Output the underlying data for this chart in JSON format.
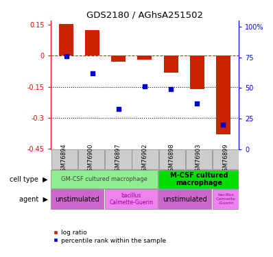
{
  "title": "GDS2180 / AGhsA251502",
  "samples": [
    "GSM76894",
    "GSM76900",
    "GSM76897",
    "GSM76902",
    "GSM76898",
    "GSM76903",
    "GSM76899"
  ],
  "log_ratios": [
    0.155,
    0.125,
    -0.03,
    -0.02,
    -0.08,
    -0.16,
    -0.38
  ],
  "percentile_ranks": [
    76,
    62,
    33,
    51,
    49,
    37,
    20
  ],
  "ylim_left": [
    -0.45,
    0.17
  ],
  "ylim_right": [
    0,
    105
  ],
  "yticks_left": [
    0.15,
    0,
    -0.15,
    -0.3,
    -0.45
  ],
  "yticks_right": [
    100,
    75,
    50,
    25,
    0
  ],
  "cell_type_gm": "GM-CSF cultured macrophage",
  "cell_type_mcsf": "M-CSF cultured\nmacrophage",
  "cell_type_gm_color": "#90EE90",
  "cell_type_mcsf_color": "#00DD00",
  "agent_unstim_color": "#CC66CC",
  "agent_bcg_color": "#EE82EE",
  "agent_unstim_label": "unstimulated",
  "agent_bcg_label": "bacillus\nCalmette-Guerin",
  "agent_bcg2_label": "bacillus\nCalmette\n-Guerin",
  "bar_color": "#CC2200",
  "dot_color": "#0000CC",
  "dashed_color": "#CC2200",
  "dotted_color": "#000000",
  "sample_bg": "#CCCCCC",
  "legend_items": [
    "log ratio",
    "percentile rank within the sample"
  ]
}
